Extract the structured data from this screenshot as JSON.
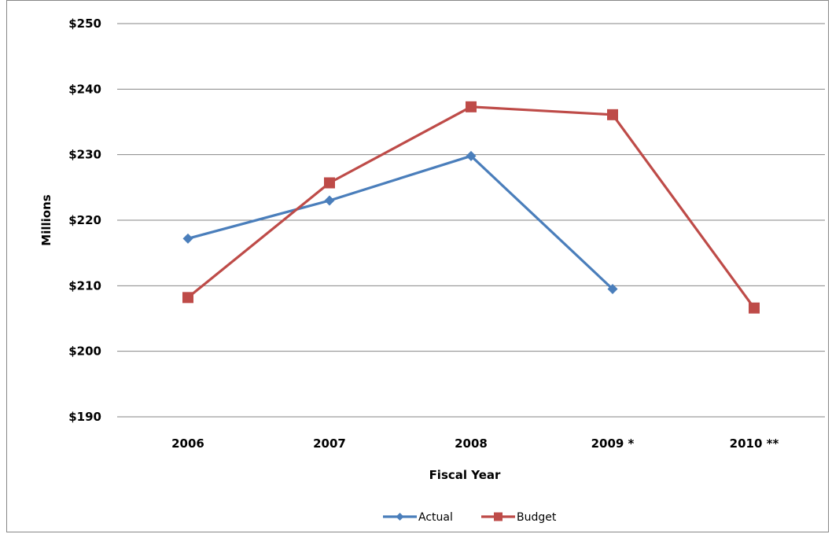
{
  "chart_data": {
    "type": "line",
    "title": "",
    "xlabel": "Fiscal Year",
    "ylabel": "Millions",
    "categories": [
      "2006",
      "2007",
      "2008",
      "2009 *",
      "2010 **"
    ],
    "y_tick_labels": [
      "$190",
      "$200",
      "$210",
      "$220",
      "$230",
      "$240",
      "$250"
    ],
    "y_ticks": [
      190,
      200,
      210,
      220,
      230,
      240,
      250
    ],
    "ylim": [
      190,
      250
    ],
    "grid": true,
    "legend_position": "bottom-center",
    "series": [
      {
        "name": "Actual",
        "color": "#4a7ebb",
        "marker": "diamond",
        "values": [
          217.2,
          223.0,
          229.8,
          209.5,
          null
        ]
      },
      {
        "name": "Budget",
        "color": "#be4b48",
        "marker": "square",
        "values": [
          208.2,
          225.7,
          237.3,
          236.1,
          206.6
        ]
      }
    ]
  }
}
